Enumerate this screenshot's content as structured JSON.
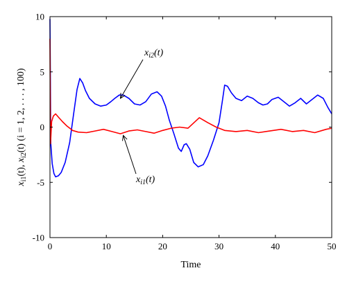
{
  "chart_data": {
    "type": "line",
    "xlabel": "Time",
    "ylabel": "x_{i1}(t), x_{i2}(t) (i = 1, 2, ..., 100)",
    "xlim": [
      0,
      50
    ],
    "ylim": [
      -10,
      10
    ],
    "xticks": [
      "0",
      "10",
      "20",
      "30",
      "40",
      "50"
    ],
    "yticks": [
      "10",
      "5",
      "0",
      "-5",
      "-10"
    ],
    "grid": false,
    "series": [
      {
        "label": "x_{i2}(t)",
        "color": "#0000ff",
        "x": [
          0,
          0.15,
          0.4,
          0.7,
          1.0,
          1.5,
          2.0,
          2.7,
          3.5,
          4.2,
          4.8,
          5.3,
          5.8,
          6.3,
          7.0,
          8.0,
          9.0,
          10.0,
          10.8,
          11.5,
          12.3,
          13.0,
          14.0,
          15.0,
          16.0,
          17.0,
          18.0,
          19.0,
          19.8,
          20.5,
          21.2,
          22.0,
          22.8,
          23.3,
          23.8,
          24.2,
          24.8,
          25.5,
          26.3,
          27.2,
          28.0,
          29.0,
          30.0,
          30.6,
          31.0,
          31.5,
          32.2,
          33.0,
          34.0,
          35.0,
          36.0,
          37.0,
          37.8,
          38.6,
          39.4,
          40.5,
          41.5,
          42.5,
          43.5,
          44.5,
          45.5,
          46.5,
          47.5,
          48.5,
          49.3,
          50.0
        ],
        "y": [
          9.8,
          -1.5,
          -3.3,
          -4.2,
          -4.5,
          -4.4,
          -4.1,
          -3.2,
          -1.4,
          1.2,
          3.4,
          4.4,
          4.0,
          3.3,
          2.6,
          2.1,
          1.9,
          2.0,
          2.3,
          2.6,
          2.9,
          2.9,
          2.6,
          2.1,
          2.0,
          2.3,
          3.0,
          3.2,
          2.8,
          1.9,
          0.6,
          -0.6,
          -1.9,
          -2.2,
          -1.6,
          -1.5,
          -2.0,
          -3.2,
          -3.6,
          -3.4,
          -2.6,
          -1.2,
          0.4,
          2.4,
          3.8,
          3.7,
          3.1,
          2.6,
          2.4,
          2.8,
          2.6,
          2.2,
          2.0,
          2.1,
          2.5,
          2.7,
          2.3,
          1.9,
          2.2,
          2.6,
          2.1,
          2.5,
          2.9,
          2.6,
          1.8,
          1.2
        ]
      },
      {
        "label": "x_{i1}(t)",
        "color": "#ff0000",
        "x": [
          0,
          0.1,
          0.3,
          0.6,
          1.0,
          1.5,
          2.2,
          3.0,
          4.0,
          5.0,
          6.5,
          8.0,
          9.5,
          11.0,
          12.5,
          14.0,
          15.5,
          17.0,
          18.5,
          20.0,
          21.5,
          23.0,
          24.5,
          26.5,
          28.0,
          29.5,
          31.0,
          33.0,
          35.0,
          37.0,
          39.0,
          41.0,
          43.0,
          45.0,
          47.0,
          49.0,
          50.0
        ],
        "y": [
          8.0,
          -1.5,
          0.5,
          1.0,
          1.2,
          0.9,
          0.5,
          0.1,
          -0.3,
          -0.45,
          -0.5,
          -0.35,
          -0.2,
          -0.4,
          -0.6,
          -0.35,
          -0.25,
          -0.4,
          -0.55,
          -0.3,
          -0.1,
          0.0,
          -0.1,
          0.85,
          0.4,
          0.0,
          -0.3,
          -0.4,
          -0.3,
          -0.5,
          -0.35,
          -0.2,
          -0.4,
          -0.3,
          -0.5,
          -0.2,
          -0.1
        ]
      }
    ],
    "annotations": [
      {
        "main": "x",
        "sub": "i2",
        "rest": "(t)",
        "arrow_to": [
          12.5,
          2.6
        ]
      },
      {
        "main": "x",
        "sub": "i1",
        "rest": "(t)",
        "arrow_to": [
          13.0,
          -0.75
        ]
      }
    ]
  }
}
